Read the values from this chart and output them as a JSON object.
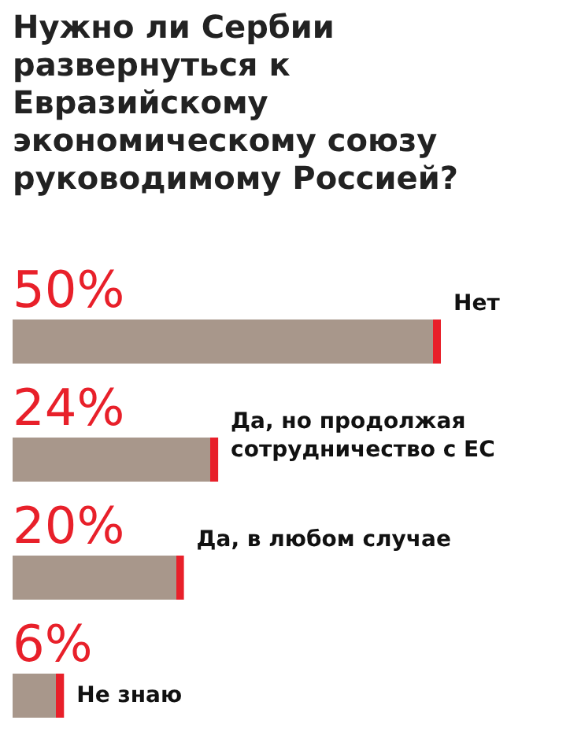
{
  "chart_data": {
    "type": "bar",
    "orientation": "horizontal",
    "title": "Нужно ли Сербии развернуться к Евразийскому экономическому союзу руководимому Россией?",
    "categories": [
      "Нет",
      "Да, но продолжая сотрудничество с ЕС",
      "Да, в любом случае",
      "Не знаю"
    ],
    "values": [
      50,
      24,
      20,
      6
    ],
    "value_labels": [
      "50%",
      "24%",
      "20%",
      "6%"
    ],
    "color": "#a8978b"
  }
}
